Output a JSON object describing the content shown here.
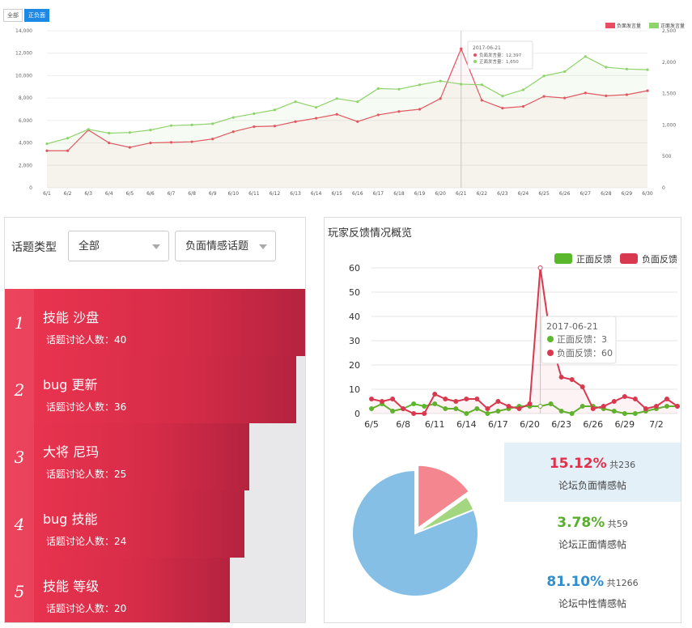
{
  "tabs": {
    "all": "全部",
    "positive": "正负面"
  },
  "top_chart": {
    "legend": {
      "neg": "负面发言量",
      "pos": "正面发言量"
    },
    "tooltip": {
      "date": "2017-06-21",
      "neg": "负面发言量：12,397",
      "pos": "正面发言量：1,650"
    }
  },
  "filters": {
    "label": "话题类型",
    "select1": "全部",
    "select2": "负面情感话题"
  },
  "topics": [
    {
      "rank": "1",
      "title": "技能 沙盘",
      "count": "话题讨论人数：40"
    },
    {
      "rank": "2",
      "title": "bug 更新",
      "count": "话题讨论人数：36"
    },
    {
      "rank": "3",
      "title": "大将 尼玛",
      "count": "话题讨论人数：25"
    },
    {
      "rank": "4",
      "title": "bug 技能",
      "count": "话题讨论人数：24"
    },
    {
      "rank": "5",
      "title": "技能 等级",
      "count": "话题讨论人数：20"
    }
  ],
  "right_panel": {
    "title": "玩家反馈情况概览",
    "legend": {
      "pos": "正面反馈",
      "neg": "负面反馈"
    },
    "tooltip": {
      "date": "2017-06-21",
      "pos": "正面反馈：3",
      "neg": "负面反馈：60"
    }
  },
  "stats": [
    {
      "pct": "15.12%",
      "total": "共236",
      "label": "论坛负面情感帖",
      "color": "#e0304a",
      "bg": "#e3f0f8"
    },
    {
      "pct": "3.78%",
      "total": "共59",
      "label": "论坛正面情感帖",
      "color": "#5aae2e",
      "bg": "#ffffff"
    },
    {
      "pct": "81.10%",
      "total": "共1266",
      "label": "论坛中性情感帖",
      "color": "#2f8fd0",
      "bg": "#ffffff"
    }
  ],
  "colors": {
    "neg": "#e84e62",
    "pos": "#8ed36b",
    "neutral": "#86bfe6",
    "neg_pie": "#f3868f",
    "pos_pie": "#a4d67f",
    "pos2": "#5bb82c",
    "neg2": "#d9394f"
  },
  "chart_data": [
    {
      "type": "line",
      "categories": [
        "6/1",
        "6/2",
        "6/3",
        "6/4",
        "6/5",
        "6/6",
        "6/7",
        "6/8",
        "6/9",
        "6/10",
        "6/11",
        "6/12",
        "6/13",
        "6/14",
        "6/15",
        "6/16",
        "6/17",
        "6/18",
        "6/19",
        "6/20",
        "6/21",
        "6/22",
        "6/23",
        "6/24",
        "6/25",
        "6/26",
        "6/27",
        "6/28",
        "6/29",
        "6/30"
      ],
      "series": [
        {
          "name": "负面发言量",
          "axis": "left",
          "values": [
            3300,
            3300,
            5150,
            4000,
            3600,
            4000,
            4050,
            4100,
            4350,
            5000,
            5450,
            5500,
            5900,
            6200,
            6550,
            5900,
            6500,
            6800,
            7000,
            7950,
            12397,
            7800,
            7100,
            7250,
            8150,
            8000,
            8450,
            8200,
            8300,
            8650
          ]
        },
        {
          "name": "正面发言量",
          "axis": "right",
          "values": [
            700,
            790,
            930,
            870,
            880,
            920,
            990,
            1000,
            1020,
            1120,
            1180,
            1240,
            1370,
            1280,
            1420,
            1370,
            1580,
            1570,
            1640,
            1700,
            1650,
            1640,
            1460,
            1560,
            1780,
            1850,
            2090,
            1920,
            1890,
            1880
          ]
        }
      ],
      "ylim_left": [
        0,
        14000
      ],
      "yticks_left": [
        "0",
        "2,000",
        "4,000",
        "6,000",
        "8,000",
        "10,000",
        "12,000",
        "14,000"
      ],
      "ylim_right": [
        0,
        2500
      ],
      "yticks_right": [
        "0",
        "500",
        "1,000",
        "1,500",
        "2,000",
        "2,500"
      ],
      "legend": "top-right",
      "grid": true
    },
    {
      "type": "line",
      "x": [
        "6/5",
        "6/6",
        "6/7",
        "6/8",
        "6/9",
        "6/10",
        "6/11",
        "6/12",
        "6/13",
        "6/14",
        "6/15",
        "6/16",
        "6/17",
        "6/18",
        "6/19",
        "6/20",
        "6/21",
        "6/22",
        "6/23",
        "6/24",
        "6/25",
        "6/26",
        "6/27",
        "6/28",
        "6/29",
        "6/30",
        "7/1",
        "7/2",
        "7/3",
        "7/4"
      ],
      "xticks": [
        "6/5",
        "6/8",
        "6/11",
        "6/14",
        "6/17",
        "6/20",
        "6/23",
        "6/26",
        "6/29",
        "7/2"
      ],
      "series": [
        {
          "name": "正面反馈",
          "values": [
            2,
            4,
            1,
            2,
            4,
            3,
            4,
            2,
            2,
            0,
            2,
            0,
            1,
            2,
            3,
            3,
            3,
            4,
            1,
            0,
            3,
            3,
            2,
            1,
            0,
            0,
            1,
            2,
            3,
            3
          ]
        },
        {
          "name": "负面反馈",
          "values": [
            6,
            5,
            6,
            2,
            0,
            0,
            8,
            6,
            5,
            6,
            6,
            2,
            5,
            3,
            2,
            4,
            60,
            30,
            15,
            14,
            11,
            2,
            3,
            5,
            7,
            6,
            2,
            3,
            6,
            3
          ]
        }
      ],
      "ylim": [
        0,
        60
      ],
      "yticks": [
        "0",
        "10",
        "20",
        "30",
        "40",
        "50",
        "60"
      ],
      "legend": "top-right"
    },
    {
      "type": "pie",
      "labels": [
        "论坛负面情感帖",
        "论坛正面情感帖",
        "论坛中性情感帖"
      ],
      "values": [
        15.12,
        3.78,
        81.1
      ]
    }
  ]
}
